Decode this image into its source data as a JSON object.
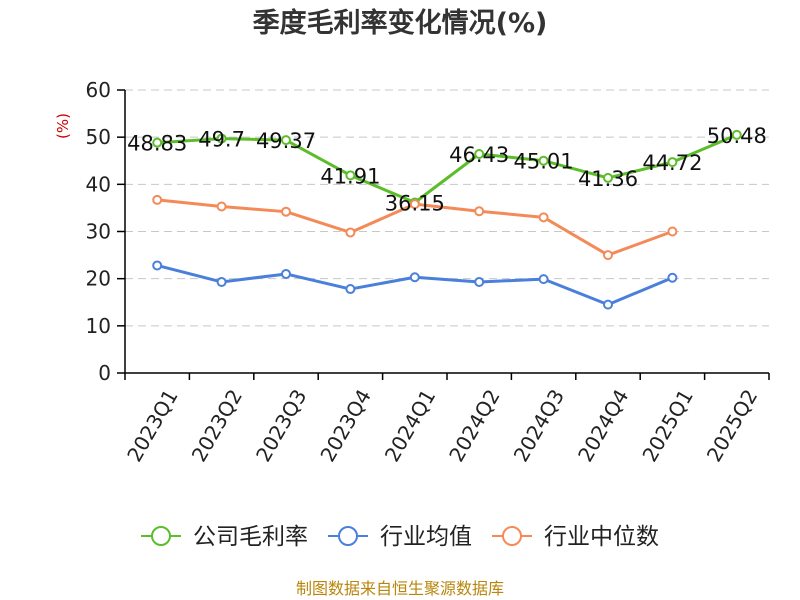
{
  "chart_data": {
    "type": "line",
    "title": "季度毛利率变化情况(%)",
    "ylabel": "(%)",
    "xlabel": "",
    "categories": [
      "2023Q1",
      "2023Q2",
      "2023Q3",
      "2023Q4",
      "2024Q1",
      "2024Q2",
      "2024Q3",
      "2024Q4",
      "2025Q1",
      "2025Q2"
    ],
    "ylim": [
      0,
      60
    ],
    "yticks": [
      0,
      10,
      20,
      30,
      40,
      50,
      60
    ],
    "grid": true,
    "legend_position": "bottom",
    "series": [
      {
        "name": "公司毛利率",
        "color": "#5cbd2a",
        "values": [
          48.83,
          49.7,
          49.37,
          41.91,
          36.15,
          46.43,
          45.01,
          41.36,
          44.72,
          50.48
        ],
        "labels": [
          "48.83",
          "49.7",
          "49.37",
          "41.91",
          "36.15",
          "46.43",
          "45.01",
          "41.36",
          "44.72",
          "50.48"
        ]
      },
      {
        "name": "行业均值",
        "color": "#4a7fdc",
        "values": [
          22.8,
          19.3,
          21.0,
          17.8,
          20.3,
          19.3,
          19.9,
          14.5,
          20.2,
          null
        ]
      },
      {
        "name": "行业中位数",
        "color": "#f48a58",
        "values": [
          36.7,
          35.3,
          34.2,
          29.8,
          35.8,
          34.3,
          33.0,
          25.0,
          30.0,
          null
        ]
      }
    ],
    "source": "制图数据来自恒生聚源数据库",
    "source_color": "#b8860b",
    "ylabel_color": "#cc0000"
  }
}
